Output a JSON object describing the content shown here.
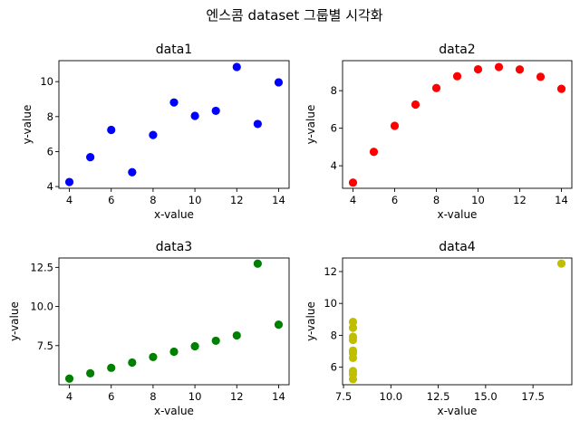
{
  "figure": {
    "title": "엔스콤 dataset 그룹별 시각화"
  },
  "chart_data": [
    {
      "type": "scatter",
      "title": "data1",
      "xlabel": "x-value",
      "ylabel": "y-value",
      "color": "#0000ff",
      "x": [
        10,
        8,
        13,
        9,
        11,
        14,
        6,
        4,
        12,
        7,
        5
      ],
      "y": [
        8.04,
        6.95,
        7.58,
        8.81,
        8.33,
        9.96,
        7.24,
        4.26,
        10.84,
        4.82,
        5.68
      ],
      "xlim": [
        3.5,
        14.5
      ],
      "ylim": [
        3.9,
        11.2
      ],
      "xticks": [
        4,
        6,
        8,
        10,
        12,
        14
      ],
      "xtick_labels": [
        "4",
        "6",
        "8",
        "10",
        "12",
        "14"
      ],
      "yticks": [
        4,
        6,
        8,
        10
      ],
      "ytick_labels": [
        "4",
        "6",
        "8",
        "10"
      ]
    },
    {
      "type": "scatter",
      "title": "data2",
      "xlabel": "x-value",
      "ylabel": "y-value",
      "color": "#ff0000",
      "x": [
        10,
        8,
        13,
        9,
        11,
        14,
        6,
        4,
        12,
        7,
        5
      ],
      "y": [
        9.14,
        8.14,
        8.74,
        8.77,
        9.26,
        8.1,
        6.13,
        3.1,
        9.13,
        7.26,
        4.74
      ],
      "xlim": [
        3.5,
        14.5
      ],
      "ylim": [
        2.8,
        9.6
      ],
      "xticks": [
        4,
        6,
        8,
        10,
        12,
        14
      ],
      "xtick_labels": [
        "4",
        "6",
        "8",
        "10",
        "12",
        "14"
      ],
      "yticks": [
        4,
        6,
        8
      ],
      "ytick_labels": [
        "4",
        "6",
        "8"
      ]
    },
    {
      "type": "scatter",
      "title": "data3",
      "xlabel": "x-value",
      "ylabel": "y-value",
      "color": "#008000",
      "x": [
        10,
        8,
        13,
        9,
        11,
        14,
        6,
        4,
        12,
        7,
        5
      ],
      "y": [
        7.46,
        6.77,
        12.74,
        7.11,
        7.81,
        8.84,
        6.08,
        5.39,
        8.15,
        6.42,
        5.73
      ],
      "xlim": [
        3.5,
        14.5
      ],
      "ylim": [
        5.0,
        13.1
      ],
      "xticks": [
        4,
        6,
        8,
        10,
        12,
        14
      ],
      "xtick_labels": [
        "4",
        "6",
        "8",
        "10",
        "12",
        "14"
      ],
      "yticks": [
        7.5,
        10.0,
        12.5
      ],
      "ytick_labels": [
        "7.5",
        "10.0",
        "12.5"
      ]
    },
    {
      "type": "scatter",
      "title": "data4",
      "xlabel": "x-value",
      "ylabel": "y-value",
      "color": "#bfbf00",
      "x": [
        8,
        8,
        8,
        8,
        8,
        8,
        8,
        19,
        8,
        8,
        8
      ],
      "y": [
        6.58,
        5.76,
        7.71,
        8.84,
        8.47,
        7.04,
        5.25,
        12.5,
        5.56,
        7.91,
        6.89
      ],
      "xlim": [
        7.45,
        19.55
      ],
      "ylim": [
        4.9,
        12.85
      ],
      "xticks": [
        7.5,
        10.0,
        12.5,
        15.0,
        17.5
      ],
      "xtick_labels": [
        "7.5",
        "10.0",
        "12.5",
        "15.0",
        "17.5"
      ],
      "yticks": [
        6,
        8,
        10,
        12
      ],
      "ytick_labels": [
        "6",
        "8",
        "10",
        "12"
      ]
    }
  ]
}
